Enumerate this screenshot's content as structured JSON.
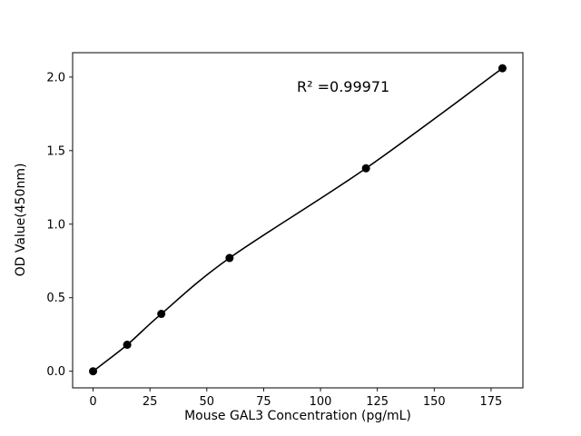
{
  "figure": {
    "background": "#ffffff"
  },
  "chart_data": {
    "type": "scatter",
    "title": "",
    "xlabel": "Mouse GAL3 Concentration (pg/mL)",
    "ylabel": "OD Value(450nm)",
    "annotation": {
      "text": "R² =0.99971",
      "x": 110,
      "y": 1.9
    },
    "x": [
      0,
      15,
      30,
      60,
      120,
      180
    ],
    "y": [
      0.0,
      0.18,
      0.39,
      0.77,
      1.38,
      2.06
    ],
    "fit": "smooth-standard-curve-through-points",
    "xlim": [
      -9,
      189
    ],
    "ylim": [
      -0.113,
      2.166
    ],
    "xticks": {
      "values": [
        0,
        25,
        50,
        75,
        100,
        125,
        150,
        175
      ],
      "labels": [
        "0",
        "25",
        "50",
        "75",
        "100",
        "125",
        "150",
        "175"
      ]
    },
    "yticks": {
      "values": [
        0.0,
        0.5,
        1.0,
        1.5,
        2.0
      ],
      "labels": [
        "0.0",
        "0.5",
        "1.0",
        "1.5",
        "2.0"
      ]
    },
    "marker_color": "#000000",
    "line_color": "#000000",
    "frame_color": "#000000",
    "grid": false,
    "legend": null
  }
}
